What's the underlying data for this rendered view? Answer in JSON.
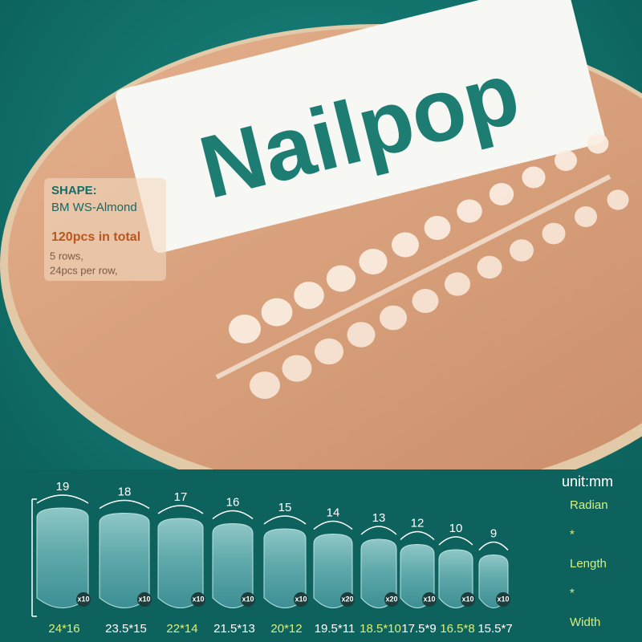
{
  "brand": "Nailpop",
  "shape_info": {
    "label": "SHAPE:",
    "value": "BM WS-Almond",
    "total": "120pcs in total",
    "rows": "5 rows,",
    "per_row": "24pcs per row,"
  },
  "size_chart": {
    "unit": "unit:mm",
    "legend": [
      "Radian",
      "*",
      "Length",
      "*",
      "Width"
    ],
    "nails": [
      {
        "radian": 19,
        "count": "x10",
        "size": "24*16",
        "color": "#d8f07a"
      },
      {
        "radian": 18,
        "count": "x10",
        "size": "23.5*15",
        "color": "#ffffff"
      },
      {
        "radian": 17,
        "count": "x10",
        "size": "22*14",
        "color": "#d8f07a"
      },
      {
        "radian": 16,
        "count": "x10",
        "size": "21.5*13",
        "color": "#ffffff"
      },
      {
        "radian": 15,
        "count": "x10",
        "size": "20*12",
        "color": "#d8f07a"
      },
      {
        "radian": 14,
        "count": "x20",
        "size": "19.5*11",
        "color": "#ffffff"
      },
      {
        "radian": 13,
        "count": "x20",
        "size": "18.5*10",
        "color": "#d8f07a"
      },
      {
        "radian": 12,
        "count": "x10",
        "size": "17.5*9",
        "color": "#ffffff"
      },
      {
        "radian": 10,
        "count": "x10",
        "size": "16.5*8",
        "color": "#d8f07a"
      },
      {
        "radian": 9,
        "count": "x10",
        "size": "15.5*7",
        "color": "#ffffff"
      }
    ]
  }
}
